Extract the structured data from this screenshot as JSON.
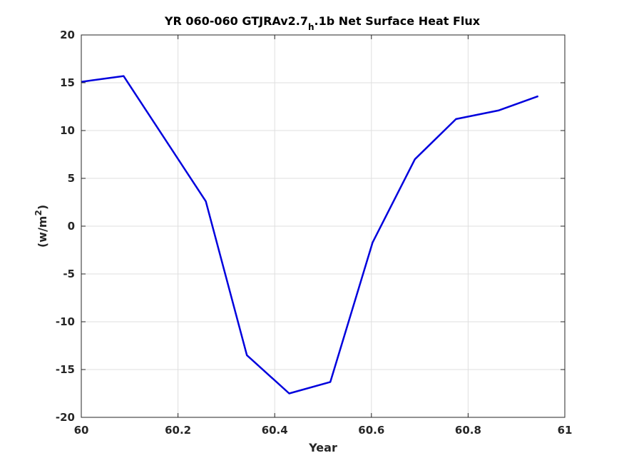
{
  "chart_data": {
    "type": "line",
    "title": {
      "prefix": "YR 060-060 GTJRAv2.7",
      "subscript": "h",
      "suffix": ".1b Net Surface Heat Flux"
    },
    "xlabel": "Year",
    "ylabel": {
      "base": "(w/m",
      "superscript": "2",
      "close": ")"
    },
    "xlim": [
      60,
      61
    ],
    "ylim": [
      -20,
      20
    ],
    "xticks": [
      60,
      60.2,
      60.4,
      60.6,
      60.8,
      61
    ],
    "xtick_labels": [
      "60",
      "60.2",
      "60.4",
      "60.6",
      "60.8",
      "61"
    ],
    "yticks": [
      -20,
      -15,
      -10,
      -5,
      0,
      5,
      10,
      15,
      20
    ],
    "ytick_labels": [
      "-20",
      "-15",
      "-10",
      "-5",
      "0",
      "5",
      "10",
      "15",
      "20"
    ],
    "grid": true,
    "line_color": "#0000dd",
    "series": [
      {
        "x": [
          60.0,
          60.0875,
          60.2575,
          60.3425,
          60.43,
          60.515,
          60.6025,
          60.69,
          60.775,
          60.8625,
          60.945
        ],
        "y": [
          15.1,
          15.7,
          2.6,
          -13.5,
          -17.5,
          -16.3,
          -1.7,
          7.0,
          11.2,
          12.1,
          13.6
        ]
      }
    ]
  }
}
